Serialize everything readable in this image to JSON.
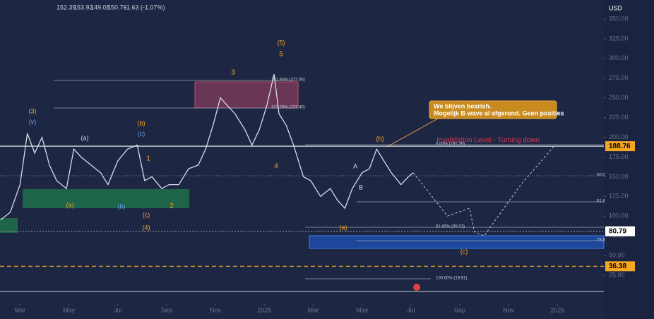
{
  "header": {
    "ohlc": [
      "152.39",
      "153.92",
      "149.08",
      "150.76",
      "-1.63 (-1.07%)"
    ],
    "currency": "USD"
  },
  "chart_data": {
    "type": "line",
    "color": "#d8dce6",
    "x": [
      1.2,
      1.6,
      2.0,
      2.3,
      2.6,
      2.9,
      3.2,
      3.5,
      3.9,
      4.2,
      4.5,
      4.9,
      5.3,
      5.6,
      6.0,
      6.4,
      6.8,
      7.1,
      7.4,
      7.8,
      8.1,
      8.5,
      8.9,
      9.3,
      9.6,
      9.9,
      10.2,
      10.5,
      10.8,
      11.2,
      11.5,
      11.8,
      12.1,
      12.4,
      12.6,
      12.9,
      13.2,
      13.6,
      13.9,
      14.3,
      14.7,
      15.0,
      15.3,
      15.6,
      16.0,
      16.3,
      16.6,
      16.9,
      17.2,
      17.6,
      17.9,
      18.1
    ],
    "values": [
      95,
      105,
      140,
      205,
      180,
      200,
      165,
      145,
      135,
      185,
      175,
      165,
      155,
      140,
      170,
      185,
      190,
      145,
      150,
      135,
      140,
      140,
      160,
      165,
      185,
      215,
      250,
      240,
      230,
      210,
      190,
      210,
      240,
      280,
      230,
      215,
      190,
      150,
      145,
      125,
      135,
      120,
      110,
      135,
      155,
      160,
      185,
      170,
      155,
      140,
      150,
      155
    ],
    "projection": {
      "x": [
        18.1,
        19.5,
        20.4,
        20.6,
        21.0,
        22.5,
        23.9
      ],
      "values": [
        155,
        100,
        110,
        80,
        75,
        140,
        190
      ]
    },
    "xlim": [
      1.18,
      25.9
    ],
    "xticks": [
      {
        "value": 2,
        "label": "Mar"
      },
      {
        "value": 4,
        "label": "May"
      },
      {
        "value": 6,
        "label": "Jul"
      },
      {
        "value": 8,
        "label": "Sep"
      },
      {
        "value": 10,
        "label": "Nov"
      },
      {
        "value": 12,
        "label": "2025"
      },
      {
        "value": 14,
        "label": "Mar"
      },
      {
        "value": 16,
        "label": "May"
      },
      {
        "value": 18,
        "label": "Jul"
      },
      {
        "value": 20,
        "label": "Sep"
      },
      {
        "value": 22,
        "label": "Nov"
      },
      {
        "value": 24,
        "label": "2026"
      }
    ],
    "ylim": [
      -10.8,
      374.2
    ],
    "yticks": [
      {
        "value": 25,
        "label": "25.00"
      },
      {
        "value": 50,
        "label": "50.00"
      },
      {
        "value": 75,
        "label": "75.00"
      },
      {
        "value": 100,
        "label": "100.00"
      },
      {
        "value": 125,
        "label": "125.00"
      },
      {
        "value": 150,
        "label": "150.00"
      },
      {
        "value": 175,
        "label": "175.00"
      },
      {
        "value": 200,
        "label": "200.00"
      },
      {
        "value": 225,
        "label": "225.00"
      },
      {
        "value": 250,
        "label": "250.00"
      },
      {
        "value": 275,
        "label": "275.00"
      },
      {
        "value": 300,
        "label": "300.00"
      },
      {
        "value": 325,
        "label": "325.00"
      },
      {
        "value": 350,
        "label": "350.00"
      }
    ],
    "levels": [
      {
        "value": 188.76,
        "color": "#f5a623",
        "line": "#e8e8e8",
        "dash": ""
      },
      {
        "value": 80.79,
        "color": "#ffffff",
        "line": "#8a90a0",
        "dash": "2 2"
      },
      {
        "value": 36.38,
        "color": "#f5a623",
        "line": "#f5a623",
        "dash": "6 4"
      }
    ],
    "fib_labels": [
      "161.80% (277.06)",
      "127.20% (237.40)",
      "0.00% (191.39)",
      "50.0",
      "61.8",
      "61.80% (85.03)",
      "78.6",
      "100.00% (19.91)"
    ],
    "waves": [
      {
        "label": "(3)",
        "color": "#f5a623"
      },
      {
        "label": "(v)",
        "color": "#6fa0e8"
      },
      {
        "label": "(a)",
        "color": "#c9d4ec"
      },
      {
        "label": "(a)",
        "color": "#f5a623"
      },
      {
        "label": "(b)",
        "color": "#f5a623"
      },
      {
        "label": "(c)",
        "color": "#6fa0e8"
      },
      {
        "label": "(b)",
        "color": "#6fa0e8"
      },
      {
        "label": "(c)",
        "color": "#f5a623"
      },
      {
        "label": "1",
        "color": "#f5a623"
      },
      {
        "label": "2",
        "color": "#f5a623"
      },
      {
        "label": "(4)",
        "color": "#f5a623"
      },
      {
        "label": "3",
        "color": "#f5a623"
      },
      {
        "label": "(5)",
        "color": "#f5a623"
      },
      {
        "label": "5",
        "color": "#f5a623"
      },
      {
        "label": "4",
        "color": "#f5a623"
      },
      {
        "label": "(a)",
        "color": "#f5a623"
      },
      {
        "label": "A",
        "color": "#d8dce6"
      },
      {
        "label": "B",
        "color": "#d8dce6"
      },
      {
        "label": "(b)",
        "color": "#f5a623"
      },
      {
        "label": "(c)",
        "color": "#f5a623"
      }
    ],
    "annotation": [
      "We blijven bearish.",
      "Mogelijk B wave al afgerond. Geen posities"
    ],
    "invalidation": "Invalidation Level - Turning down"
  }
}
